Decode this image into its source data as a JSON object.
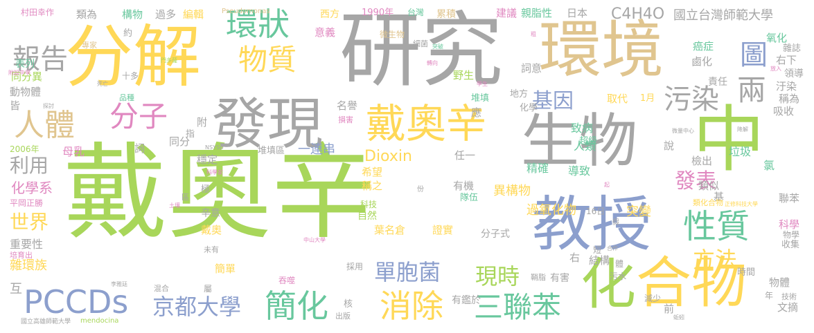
{
  "palette": {
    "green": "#a8d65a",
    "gray": "#a6a6a6",
    "yellow": "#ffd857",
    "tan": "#e0c58f",
    "blue": "#8c9fcd",
    "teal": "#68c79d",
    "pink": "#e088c0",
    "orange": "#f08c5e"
  },
  "words": [
    "戴奧辛",
    "研究",
    "分解",
    "環境",
    "教授",
    "生物",
    "中",
    "發現",
    "合物",
    "化",
    "戴奧辛",
    "PCCDs",
    "環狀",
    "物質",
    "性質",
    "污染",
    "消除",
    "簡化",
    "三聯苯",
    "人體",
    "分子",
    "京都大學",
    "報告",
    "兩",
    "圖",
    "單胞菌",
    "現時",
    "基因",
    "方法",
    "發表",
    "世界",
    "利用",
    "Dioxin",
    "C4H4O",
    "國立台灣師範大學",
    "異構物",
    "過氧化物",
    "突變",
    "精確",
    "導致",
    "人類",
    "致病",
    "垃圾",
    "氯",
    "氧化",
    "癌症",
    "1990年",
    "台灣",
    "累積",
    "建議",
    "親脂性",
    "日本",
    "西方",
    "編輯",
    "過多",
    "構物",
    "類為",
    "村田幸作",
    "專家",
    "約",
    "意義",
    "微生物",
    "細菌",
    "放入",
    "突破",
    "轉向",
    "學生",
    "堆填",
    "地方",
    "有害",
    "化學系",
    "平岡正勝",
    "重要性",
    "雜環族",
    "互",
    "培育出",
    "死亡",
    "品種",
    "動物體",
    "皆",
    "同分異",
    "表列",
    "十多",
    "母乳",
    "2006年",
    "附設中學",
    "門多薩",
    "探討",
    "名譽",
    "損害",
    "取代",
    "1月",
    "超級",
    "檢出",
    "類似",
    "吸收",
    "稱為",
    "汙染",
    "領導",
    "右下",
    "雜誌",
    "鹵化",
    "責任",
    "說",
    "基",
    "聯苯",
    "科學",
    "物學",
    "收集",
    "物體",
    "文摘",
    "技術",
    "年",
    "時間",
    "前",
    "結構",
    "右",
    "類化合物",
    "正修科技大學",
    "16日",
    "有機",
    "隊伍",
    "科技",
    "自然",
    "葉名倉",
    "證實",
    "分子式",
    "戴奧",
    "辛意",
    "簡單",
    "採用",
    "有鑑於",
    "核",
    "出版",
    "吞噬",
    "屬",
    "混合",
    "李雅廷",
    "mendocina",
    "國立高雄師範大學",
    "減少",
    "蚯蚓",
    "污水",
    "短",
    "合作",
    "鞘脂",
    "體",
    "假",
    "中山大學",
    "未有",
    "土壤",
    "區",
    "科學家",
    "稱之",
    "希望",
    "任一",
    "穩定",
    "附",
    "指",
    "同分",
    "詞",
    "一連串",
    "堆填區",
    "NSYSU",
    "應",
    "化學",
    "詞意",
    "野生",
    "Pseudomonas",
    "微量中心",
    "降解",
    "極",
    "份",
    "起",
    "粗"
  ]
}
